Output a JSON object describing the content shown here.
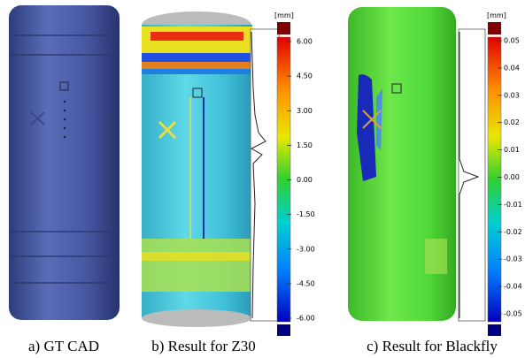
{
  "panels": [
    {
      "caption": "a) GT CAD"
    },
    {
      "caption": "b) Result for Z30",
      "unit": "[mm]",
      "scale_labels": [
        "6.00",
        "4.50",
        "3.00",
        "1.50",
        "0.00",
        "-1.50",
        "-3.00",
        "-4.50",
        "-6.00"
      ]
    },
    {
      "caption": "c) Result for Blackfly",
      "unit": "[mm]",
      "scale_labels": [
        "0.05",
        "0.04",
        "0.03",
        "0.02",
        "0.01",
        "0.00",
        "-0.01",
        "-0.02",
        "-0.03",
        "-0.04",
        "-0.05"
      ]
    }
  ]
}
